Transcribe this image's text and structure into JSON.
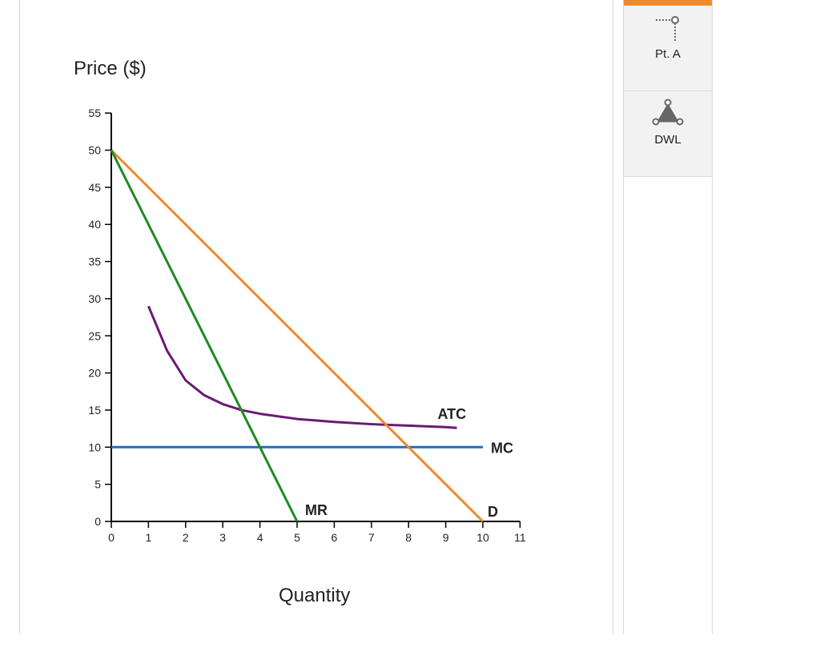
{
  "chart_data": {
    "type": "line",
    "xlabel": "Quantity",
    "ylabel": "Price ($)",
    "xlim": [
      0,
      11
    ],
    "ylim": [
      0,
      55
    ],
    "x_ticks": [
      0,
      1,
      2,
      3,
      4,
      5,
      6,
      7,
      8,
      9,
      10,
      11
    ],
    "y_ticks": [
      0,
      5,
      10,
      15,
      20,
      25,
      30,
      35,
      40,
      45,
      50,
      55
    ],
    "series": [
      {
        "name": "D",
        "color": "#ee8a2e",
        "x": [
          0,
          10
        ],
        "y": [
          50,
          0
        ]
      },
      {
        "name": "MR",
        "color": "#1f8a1f",
        "x": [
          0,
          5
        ],
        "y": [
          50,
          0
        ]
      },
      {
        "name": "MC",
        "color": "#1f6fc0",
        "x": [
          0,
          10
        ],
        "y": [
          10,
          10
        ]
      },
      {
        "name": "ATC",
        "color": "#6a1a72",
        "x": [
          1,
          1.5,
          2,
          2.5,
          3,
          3.5,
          4,
          5,
          6,
          7,
          8,
          9,
          9.3
        ],
        "y": [
          29,
          23,
          19,
          17,
          15.8,
          15,
          14.5,
          13.8,
          13.4,
          13.1,
          12.9,
          12.7,
          12.6
        ]
      }
    ],
    "grid": false
  },
  "toolbox": {
    "accent_color": "#ee8a2e",
    "tools": [
      {
        "label": "Pt. A",
        "icon": "point-tool-icon"
      },
      {
        "label": "DWL",
        "icon": "triangle-area-icon"
      }
    ]
  }
}
